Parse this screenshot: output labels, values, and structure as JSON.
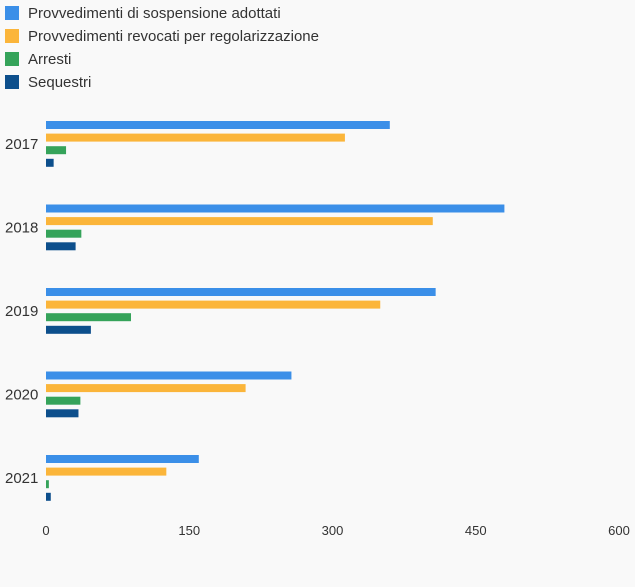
{
  "chart_data": {
    "type": "bar",
    "orientation": "horizontal",
    "categories": [
      "2017",
      "2018",
      "2019",
      "2020",
      "2021"
    ],
    "series": [
      {
        "name": "Provvedimenti di sospensione adottati",
        "color": "#3b8fe8",
        "values": [
          360,
          480,
          408,
          257,
          160
        ]
      },
      {
        "name": "Provvedimenti revocati per regolarizzazione",
        "color": "#fbb53a",
        "values": [
          313,
          405,
          350,
          209,
          126
        ]
      },
      {
        "name": "Arresti",
        "color": "#35a35a",
        "values": [
          21,
          37,
          89,
          36,
          3
        ]
      },
      {
        "name": "Sequestri",
        "color": "#0d4f8c",
        "values": [
          8,
          31,
          47,
          34,
          5
        ]
      }
    ],
    "xlim": [
      0,
      600
    ],
    "xticks": [
      "0",
      "150",
      "300",
      "450",
      "600"
    ],
    "legend_position": "top-left",
    "grid": false
  }
}
